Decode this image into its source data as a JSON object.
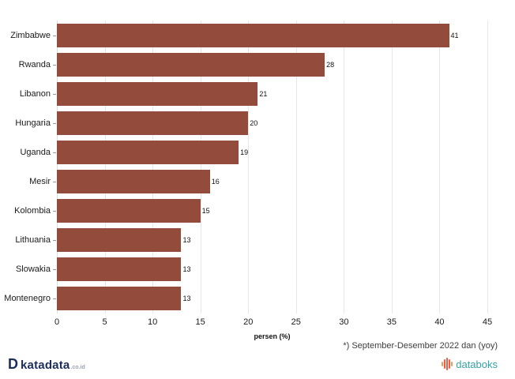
{
  "chart_data": {
    "type": "bar",
    "orientation": "horizontal",
    "categories": [
      "Zimbabwe",
      "Rwanda",
      "Libanon",
      "Hungaria",
      "Uganda",
      "Mesir",
      "Kolombia",
      "Lithuania",
      "Slowakia",
      "Montenegro"
    ],
    "values": [
      41,
      28,
      21,
      20,
      19,
      16,
      15,
      13,
      13,
      13
    ],
    "title": "",
    "xlabel": "persen (%)",
    "ylabel": "",
    "xlim": [
      0,
      45
    ],
    "xticks": [
      0,
      5,
      10,
      15,
      20,
      25,
      30,
      35,
      40,
      45
    ],
    "grid": "vertical",
    "value_labels": true,
    "bar_color": "#934c3c"
  },
  "footnote": "*) September-Desember 2022 dan (yoy)",
  "branding": {
    "katadata_d": "D",
    "katadata_name": "katadata",
    "katadata_suffix": ".co.id",
    "databoks_name": "databoks"
  },
  "colors": {
    "bar": "#934c3c",
    "grid": "#e7e7e7",
    "katadata_navy": "#1b2d5b",
    "databoks_teal": "#35a3a3",
    "databoks_icon_coral": "#ef5d42",
    "databoks_icon_orange": "#f29a52"
  }
}
